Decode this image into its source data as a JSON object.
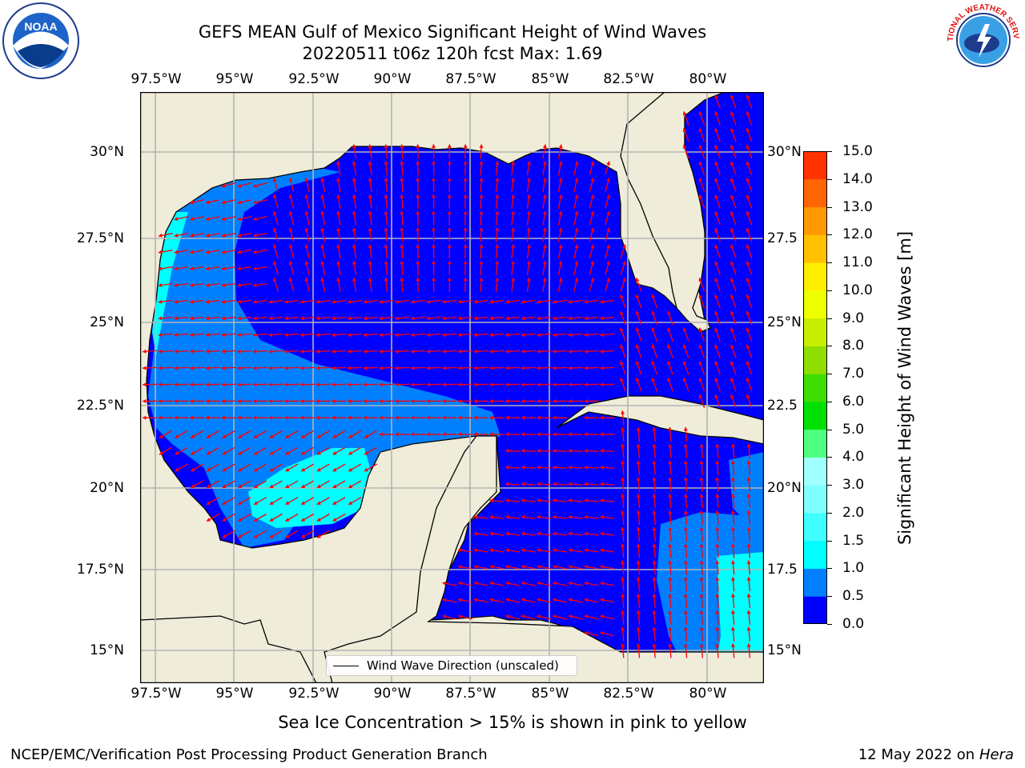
{
  "title": {
    "line1": "GEFS MEAN Gulf of Mexico Significant Height of Wind Waves",
    "line2": "20220511 t06z 120h fcst   Max: 1.69"
  },
  "map": {
    "lon_ticks": [
      "97.5°W",
      "95°W",
      "92.5°W",
      "90°W",
      "87.5°W",
      "85°W",
      "82.5°W",
      "80°W"
    ],
    "lat_ticks_left": [
      "30°N",
      "27.5°N",
      "25°N",
      "22.5°N",
      "20°N",
      "17.5°N",
      "15°N"
    ],
    "lat_ticks_right": [
      "30°N",
      "27.5",
      "25°N",
      "22.5",
      "20°N",
      "17.5",
      "15°N"
    ],
    "lon_range": [
      -98,
      -78.2
    ],
    "lat_range": [
      14,
      31.7
    ],
    "colors": {
      "land": "#efecda",
      "deep": "#0000ff",
      "mid": "#0080ff",
      "cyan": "#00ffff",
      "arrow": "#ff0000"
    }
  },
  "legend": {
    "label": "Wind Wave Direction (unscaled)"
  },
  "colorbar": {
    "label": "Significant Height of Wind Waves [m]",
    "ticks": [
      "0.0",
      "0.5",
      "1.0",
      "1.5",
      "2.0",
      "3.0",
      "4.0",
      "5.0",
      "6.0",
      "7.0",
      "8.0",
      "9.0",
      "10.0",
      "11.0",
      "12.0",
      "13.0",
      "14.0",
      "15.0"
    ],
    "colors": [
      "#0000ff",
      "#0080ff",
      "#00ffff",
      "#40ffff",
      "#80ffff",
      "#a0ffff",
      "#50ff80",
      "#00e000",
      "#40dd00",
      "#90dd00",
      "#c8ee00",
      "#eeff00",
      "#ffee00",
      "#ffc000",
      "#ff9900",
      "#ff6600",
      "#ff3300",
      "#ff0000"
    ]
  },
  "footer": {
    "note": "Sea Ice Concentration > 15% is shown in pink to yellow",
    "credit": "NCEP/EMC/Verification Post Processing Product Generation Branch",
    "date": "12 May 2022 on",
    "machine": "Hera"
  },
  "logos": {
    "noaa": "NOAA",
    "nws": "NATIONAL WEATHER SERVICE"
  }
}
